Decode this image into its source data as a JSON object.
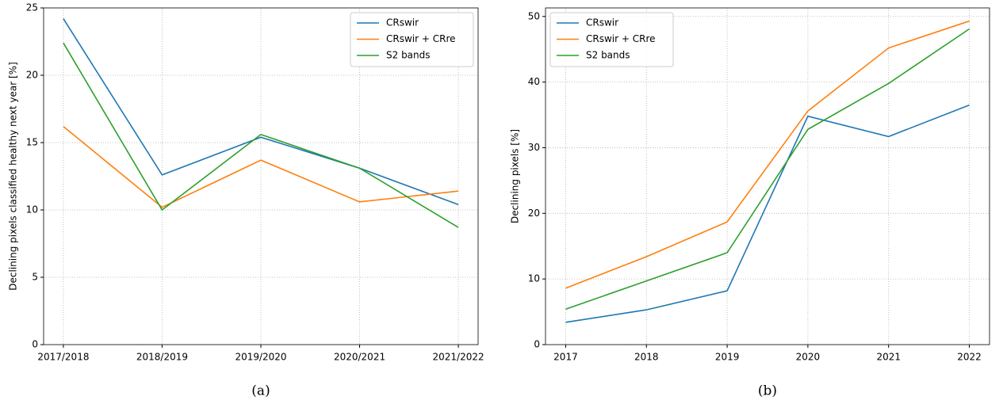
{
  "chart_data": [
    {
      "type": "line",
      "caption": "(a)",
      "ylabel": "Declining pixels classified healthy next year [%]",
      "categories": [
        "2017/2018",
        "2018/2019",
        "2019/2020",
        "2020/2021",
        "2021/2022"
      ],
      "series": [
        {
          "name": "CRswir",
          "color": "#1f77b4",
          "values": [
            24.2,
            12.6,
            15.4,
            13.1,
            10.4
          ]
        },
        {
          "name": "CRswir + CRre",
          "color": "#ff7f0e",
          "values": [
            16.2,
            10.2,
            13.7,
            10.6,
            11.4
          ]
        },
        {
          "name": "S2 bands",
          "color": "#2ca02c",
          "values": [
            22.4,
            10.0,
            15.6,
            13.1,
            8.7
          ]
        }
      ],
      "ylim": [
        0,
        25
      ],
      "yticks": [
        0,
        5,
        10,
        15,
        20,
        25
      ],
      "grid": true,
      "legend": "upper-right"
    },
    {
      "type": "line",
      "caption": "(b)",
      "ylabel": "Declining pixels [%]",
      "categories": [
        "2017",
        "2018",
        "2019",
        "2020",
        "2021",
        "2022"
      ],
      "series": [
        {
          "name": "CRswir",
          "color": "#1f77b4",
          "values": [
            3.4,
            5.3,
            8.2,
            34.8,
            31.7,
            36.5
          ]
        },
        {
          "name": "CRswir + CRre",
          "color": "#ff7f0e",
          "values": [
            8.6,
            13.4,
            18.7,
            35.6,
            45.2,
            49.3
          ]
        },
        {
          "name": "S2 bands",
          "color": "#2ca02c",
          "values": [
            5.4,
            9.7,
            14.0,
            32.8,
            39.8,
            48.1
          ]
        }
      ],
      "ylim": [
        0,
        51.3
      ],
      "yticks": [
        0,
        10,
        20,
        30,
        40,
        50
      ],
      "grid": true,
      "legend": "upper-left"
    }
  ]
}
